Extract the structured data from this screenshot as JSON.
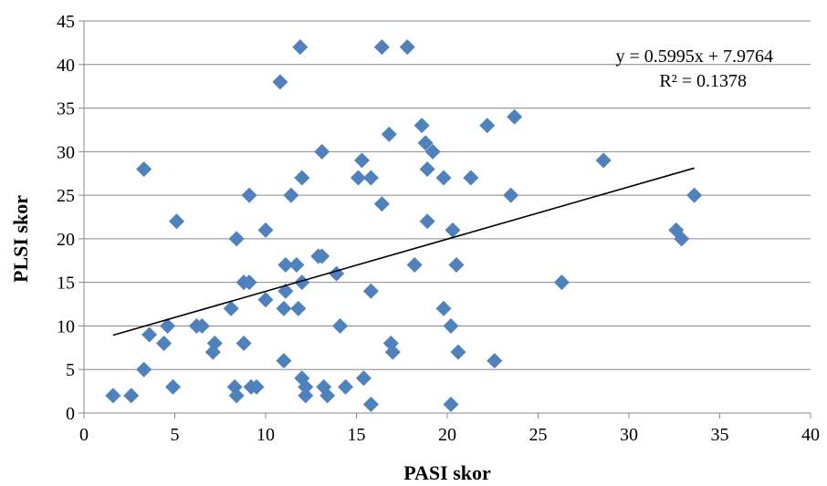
{
  "chart_data": {
    "type": "scatter",
    "title": "",
    "xlabel": "PASI skor",
    "ylabel": "PLSI skor",
    "xlim": [
      0,
      40
    ],
    "ylim": [
      0,
      45
    ],
    "xticks": [
      "0",
      "5",
      "10",
      "15",
      "20",
      "25",
      "30",
      "35",
      "40"
    ],
    "yticks": [
      "0",
      "5",
      "10",
      "15",
      "20",
      "25",
      "30",
      "35",
      "40",
      "45"
    ],
    "grid": "horizontal",
    "marker_color": "#4f81bd",
    "trendline_color": "#000000",
    "trendline": {
      "slope": 0.5995,
      "intercept": 7.9764,
      "x_range": [
        1.6,
        33.6
      ],
      "equation_label": "y = 0.5995x + 7.9764",
      "r2_label": "R² = 0.1378"
    },
    "points": [
      [
        1.6,
        2
      ],
      [
        2.6,
        2
      ],
      [
        3.3,
        5
      ],
      [
        3.3,
        28
      ],
      [
        3.6,
        9
      ],
      [
        4.4,
        8
      ],
      [
        4.6,
        10
      ],
      [
        4.9,
        3
      ],
      [
        5.1,
        22
      ],
      [
        6.2,
        10
      ],
      [
        6.5,
        10
      ],
      [
        7.1,
        7
      ],
      [
        7.2,
        8
      ],
      [
        8.1,
        12
      ],
      [
        8.3,
        3
      ],
      [
        8.4,
        2
      ],
      [
        8.4,
        20
      ],
      [
        8.8,
        8
      ],
      [
        8.8,
        15
      ],
      [
        9.1,
        15
      ],
      [
        9.1,
        25
      ],
      [
        9.2,
        3
      ],
      [
        9.5,
        3
      ],
      [
        10.0,
        21
      ],
      [
        10.0,
        13
      ],
      [
        10.8,
        38
      ],
      [
        11.0,
        12
      ],
      [
        11.0,
        6
      ],
      [
        11.1,
        17
      ],
      [
        11.1,
        14
      ],
      [
        11.4,
        25
      ],
      [
        11.7,
        17
      ],
      [
        11.8,
        12
      ],
      [
        11.9,
        42
      ],
      [
        12.0,
        27
      ],
      [
        12.0,
        15
      ],
      [
        12.0,
        4
      ],
      [
        12.2,
        3
      ],
      [
        12.2,
        2
      ],
      [
        12.9,
        18
      ],
      [
        13.1,
        18
      ],
      [
        13.1,
        30
      ],
      [
        13.2,
        3
      ],
      [
        13.4,
        2
      ],
      [
        13.9,
        16
      ],
      [
        14.1,
        10
      ],
      [
        14.4,
        3
      ],
      [
        15.1,
        27
      ],
      [
        15.3,
        29
      ],
      [
        15.4,
        4
      ],
      [
        15.8,
        27
      ],
      [
        15.8,
        14
      ],
      [
        15.8,
        1
      ],
      [
        16.4,
        42
      ],
      [
        16.4,
        24
      ],
      [
        16.8,
        32
      ],
      [
        16.9,
        8
      ],
      [
        17.0,
        7
      ],
      [
        17.8,
        42
      ],
      [
        18.2,
        17
      ],
      [
        18.6,
        33
      ],
      [
        18.8,
        31
      ],
      [
        18.9,
        28
      ],
      [
        18.9,
        22
      ],
      [
        19.2,
        30
      ],
      [
        19.8,
        27
      ],
      [
        19.8,
        12
      ],
      [
        20.2,
        10
      ],
      [
        20.3,
        21
      ],
      [
        20.2,
        1
      ],
      [
        20.5,
        17
      ],
      [
        20.6,
        7
      ],
      [
        21.3,
        27
      ],
      [
        22.2,
        33
      ],
      [
        22.6,
        6
      ],
      [
        23.5,
        25
      ],
      [
        23.7,
        34
      ],
      [
        26.3,
        15
      ],
      [
        28.6,
        29
      ],
      [
        32.6,
        21
      ],
      [
        32.9,
        20
      ],
      [
        33.6,
        25
      ]
    ]
  }
}
